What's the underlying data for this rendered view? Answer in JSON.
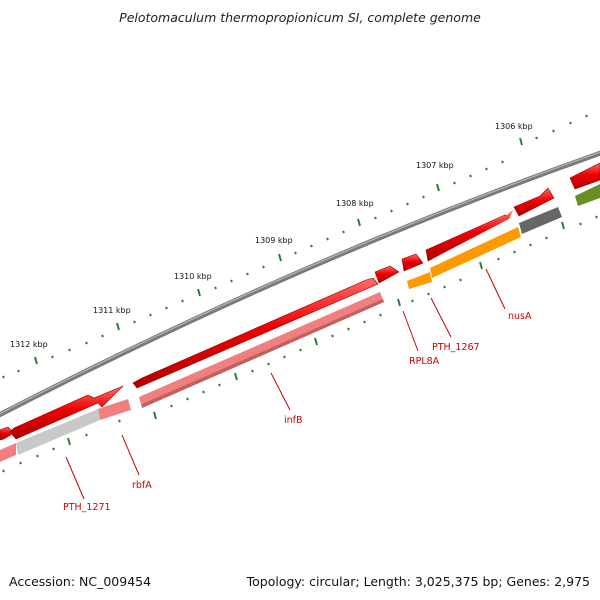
{
  "title": "Pelotomaculum thermopropionicum SI, complete genome",
  "footer": {
    "accession": "Accession: NC_009454",
    "topology": "Topology: circular; Length: 3,025,375 bp; Genes: 2,975"
  },
  "scale_labels": [
    "1312 kbp",
    "1311 kbp",
    "1310 kbp",
    "1309 kbp",
    "1308 kbp",
    "1307 kbp",
    "1306 kbp"
  ],
  "gene_labels": [
    "PTH_1271",
    "rbfA",
    "infB",
    "RPL8A",
    "PTH_1267",
    "nusA"
  ],
  "colors": {
    "backbone": "#808080",
    "cds_strand": "#ee0000",
    "feature_pink": "#f08080",
    "feature_grey": "#c8c8c8",
    "feature_orange": "#ff9900",
    "feature_dark": "#666666",
    "feature_olive": "#6b8e23",
    "ticks": "#2e7d32",
    "labels": "#cc0000"
  }
}
